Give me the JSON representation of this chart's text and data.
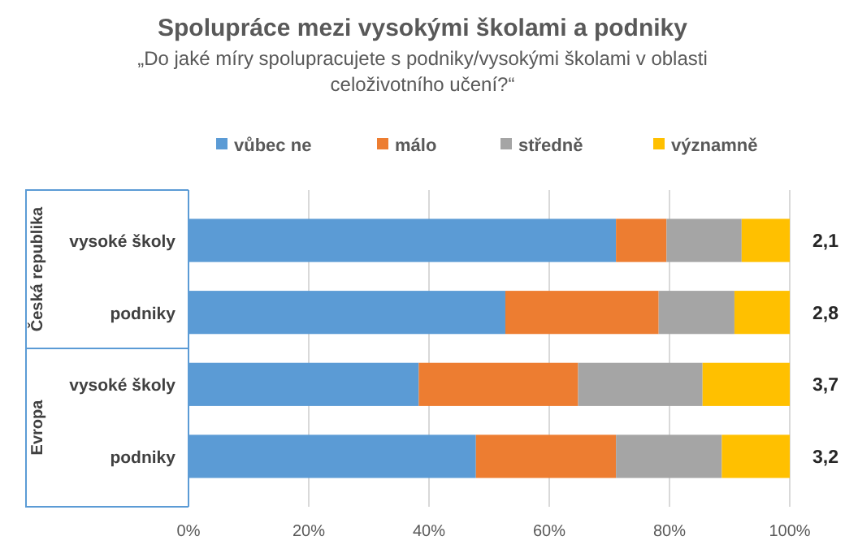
{
  "chart_data": {
    "type": "bar",
    "orientation": "horizontal",
    "stacked": true,
    "title": "Spolupráce mezi vysokými školami a podniky",
    "subtitle": "„Do jaké míry spolupracujete s podniky/vysokými školami v oblasti celoživotního učení?“",
    "categories": [
      "vysoké školy",
      "podniky",
      "vysoké školy",
      "podniky"
    ],
    "series": [
      {
        "name": "vůbec ne",
        "color": "#5b9bd5",
        "values": [
          71.1,
          52.7,
          38.3,
          47.8
        ]
      },
      {
        "name": "málo",
        "color": "#ed7d31",
        "values": [
          8.4,
          25.5,
          26.5,
          23.3
        ]
      },
      {
        "name": "středně",
        "color": "#a5a5a5",
        "values": [
          12.5,
          12.6,
          20.7,
          17.6
        ]
      },
      {
        "name": "významně",
        "color": "#ffc000",
        "values": [
          8.0,
          9.2,
          14.5,
          11.3
        ]
      }
    ],
    "xlim": [
      0,
      100
    ],
    "xticks": [
      {
        "value": 0,
        "label": "0%"
      },
      {
        "value": 20,
        "label": "20%"
      },
      {
        "value": 40,
        "label": "40%"
      },
      {
        "value": 60,
        "label": "60%"
      },
      {
        "value": 80,
        "label": "80%"
      },
      {
        "value": 100,
        "label": "100%"
      }
    ],
    "grid": "x",
    "legend": "top",
    "annotations": [
      "Česká republika",
      "Evropa",
      "2,1",
      "2,8",
      "3,7",
      "3,2"
    ]
  }
}
